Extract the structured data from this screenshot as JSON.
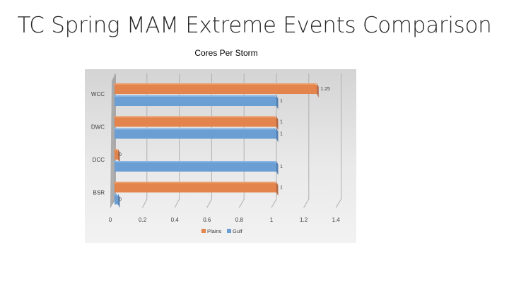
{
  "slide_title": "TC Spring MAM Extreme Events Comparison",
  "colors": {
    "plains": "#e2844c",
    "plains_light": "#eb9b68",
    "plains_dark": "#a9542a",
    "gulf": "#6b9fd4",
    "gulf_light": "#88b5e3",
    "gulf_dark": "#3c6ea7"
  },
  "chart_data": {
    "type": "bar",
    "orientation": "horizontal",
    "title": "Cores Per Storm",
    "categories": [
      "WCC",
      "DWC",
      "DCC",
      "BSR"
    ],
    "series": [
      {
        "name": "Plains",
        "values": [
          1.25,
          1,
          0,
          1
        ],
        "labels": [
          "1.25",
          "1",
          "0",
          "1"
        ]
      },
      {
        "name": "Gulf",
        "values": [
          1,
          1,
          1,
          0
        ],
        "labels": [
          "1",
          "1",
          "1",
          "0"
        ]
      }
    ],
    "xlim": [
      0,
      1.4
    ],
    "xticks": [
      "0",
      "0.2",
      "0.4",
      "0.6",
      "0.8",
      "1",
      "1.2",
      "1.4"
    ],
    "xlabel": "",
    "ylabel": "",
    "legend": "bottom",
    "gridlines": true
  }
}
